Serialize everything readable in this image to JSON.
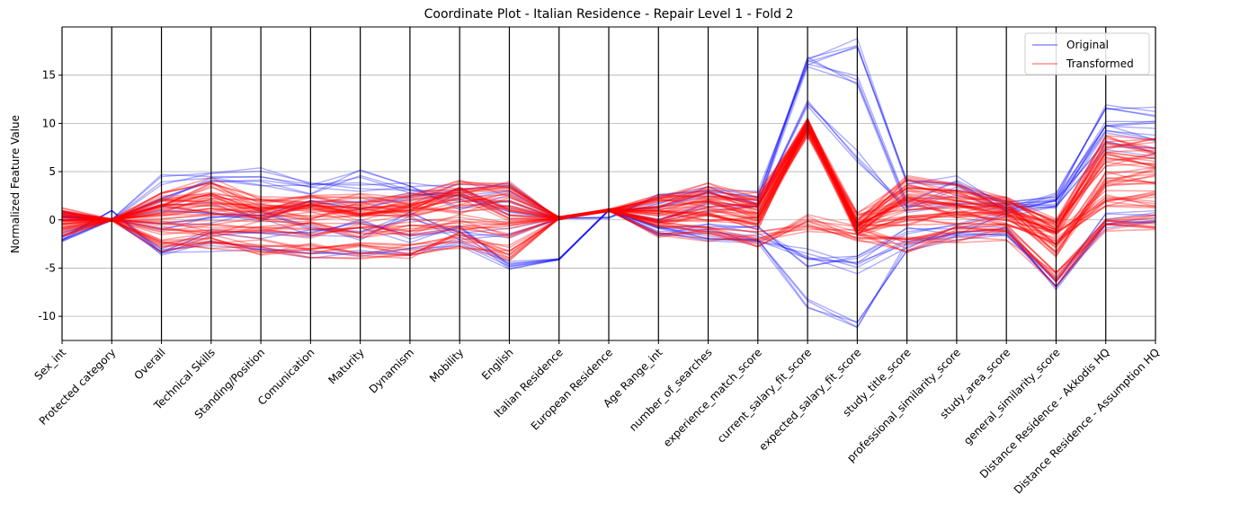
{
  "chart_data": {
    "type": "line",
    "subtype": "parallel-coordinates",
    "title": "Coordinate Plot - Italian Residence - Repair Level 1 - Fold 2",
    "ylabel": "Normalized Feature Value",
    "xlabel": "",
    "ylim": [
      -12.5,
      20
    ],
    "y_ticks": [
      -10,
      -5,
      0,
      5,
      10,
      15
    ],
    "grid": "horizontal",
    "legend_position": "top-right",
    "x_axis_categories": [
      "Sex_int",
      "Protected category",
      "Overall",
      "Technical Skills",
      "Standing/Position",
      "Comunication",
      "Maturity",
      "Dynamism",
      "Mobility",
      "English",
      "Italian Residence",
      "European Residence",
      "Age Range_int",
      "number_of_searches",
      "experience_match_score",
      "current_salary_fit_score",
      "expected_salary_fit_score",
      "study_title_score",
      "professional_similarity_score",
      "study_area_score",
      "general_similarity_score",
      "Distance Residence - Akkodis HQ",
      "Distance Residence - Assumption HQ"
    ],
    "series": [
      {
        "name": "Original",
        "color": "#0000ff",
        "samples": [
          [
            -2.0,
            1.0,
            -3.5,
            -2.8,
            -3.3,
            -3.4,
            -3.4,
            -3.4,
            -2.3,
            -4.7,
            -4.1,
            1.0,
            -1.2,
            -1.6,
            -2.1,
            -8.7,
            -10.8,
            -2.6,
            -1.8,
            -1.3,
            -6.8,
            -0.5,
            -0.5
          ],
          [
            0.5,
            0.0,
            4.1,
            4.5,
            4.8,
            3.6,
            3.4,
            3.4,
            3.1,
            3.3,
            0.2,
            0.2,
            2.2,
            3.2,
            2.4,
            16.4,
            18.3,
            3.6,
            4.0,
            1.5,
            2.5,
            11.7,
            11.3
          ],
          [
            -1.8,
            0.0,
            2.0,
            3.9,
            3.9,
            3.2,
            4.7,
            3.2,
            1.6,
            2.4,
            0.1,
            1.0,
            1.4,
            2.9,
            1.5,
            16.4,
            14.4,
            1.6,
            3.5,
            1.3,
            2.0,
            10.0,
            9.7
          ],
          [
            0.4,
            0.0,
            -3.6,
            -1.2,
            -1.6,
            -1.3,
            -0.3,
            -1.8,
            -1.0,
            -4.6,
            -4.1,
            1.0,
            -1.1,
            -1.6,
            -1.7,
            -3.6,
            -5.0,
            -2.4,
            -1.3,
            -1.1,
            -6.6,
            0.1,
            0.6
          ],
          [
            0.4,
            0.0,
            1.0,
            1.2,
            0.4,
            1.5,
            1.6,
            2.3,
            2.6,
            0.9,
            0.2,
            1.0,
            0.3,
            1.4,
            1.0,
            12.2,
            6.6,
            1.0,
            2.0,
            1.2,
            1.8,
            9.3,
            8.4
          ],
          [
            -1.9,
            0.0,
            -0.5,
            -0.2,
            0.6,
            -1.0,
            -1.6,
            0.5,
            -1.6,
            -1.4,
            0.1,
            1.0,
            -1.2,
            -0.5,
            -0.8,
            -4.5,
            -3.9,
            -0.9,
            -1.0,
            0.9,
            1.6,
            7.8,
            7.0
          ]
        ]
      },
      {
        "name": "Transformed",
        "color": "#ff0000",
        "samples": [
          [
            0.5,
            0.0,
            2.1,
            3.5,
            1.6,
            1.8,
            1.9,
            2.0,
            3.4,
            3.3,
            0.2,
            1.0,
            2.0,
            3.0,
            2.1,
            10.0,
            0.0,
            3.7,
            2.9,
            1.5,
            -0.3,
            7.9,
            7.6
          ],
          [
            -1.2,
            0.0,
            -2.6,
            -2.2,
            -2.8,
            -3.2,
            -3.2,
            -3.1,
            -2.1,
            -3.4,
            0.2,
            1.0,
            -1.0,
            -1.4,
            -2.0,
            -0.3,
            -1.5,
            -2.6,
            -1.5,
            -1.3,
            -6.2,
            -0.3,
            -0.3
          ],
          [
            0.4,
            0.0,
            0.8,
            1.3,
            0.6,
            0.8,
            1.1,
            1.0,
            1.5,
            2.1,
            0.2,
            1.0,
            0.6,
            1.4,
            0.7,
            9.5,
            -0.3,
            1.8,
            1.1,
            0.9,
            -3.4,
            4.3,
            4.6
          ],
          [
            -0.6,
            0.0,
            -0.8,
            -0.9,
            -0.6,
            -1.0,
            -1.2,
            -0.8,
            -0.3,
            -1.0,
            0.2,
            1.0,
            0.1,
            0.2,
            -0.4,
            9.9,
            -1.1,
            -0.4,
            0.3,
            0.2,
            -1.8,
            2.3,
            2.1
          ],
          [
            0.2,
            0.0,
            1.4,
            2.3,
            1.2,
            1.1,
            0.4,
            1.4,
            2.6,
            0.4,
            0.2,
            1.0,
            1.4,
            2.2,
            1.4,
            9.8,
            -0.7,
            2.6,
            2.2,
            1.2,
            -0.9,
            6.4,
            6.0
          ]
        ]
      }
    ],
    "legend": [
      "Original",
      "Transformed"
    ]
  }
}
